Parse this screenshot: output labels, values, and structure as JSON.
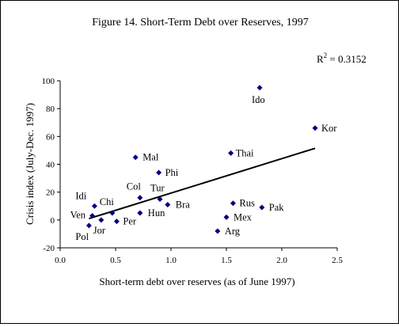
{
  "chart_data": {
    "type": "scatter",
    "title": "Figure 14. Short-Term Debt over Reserves, 1997",
    "annotation": {
      "r2_label": "R",
      "r2_sup": "2",
      "r2_value": " = 0.3152"
    },
    "xlabel": "Short-term debt over reserves (as of June 1997)",
    "ylabel": "Crisis index (July-Dec. 1997)",
    "xlim": [
      0,
      2.5
    ],
    "ylim": [
      -20,
      100
    ],
    "xticks": [
      "0.0",
      "0.5",
      "1.0",
      "1.5",
      "2.0",
      "2.5"
    ],
    "yticks": [
      "-20",
      "0",
      "20",
      "40",
      "60",
      "80",
      "100"
    ],
    "grid": false,
    "marker_color": "#000080",
    "points": [
      {
        "label": "Ido",
        "x": 1.8,
        "y": 95
      },
      {
        "label": "Kor",
        "x": 2.3,
        "y": 66
      },
      {
        "label": "Thai",
        "x": 1.54,
        "y": 48
      },
      {
        "label": "Mal",
        "x": 0.68,
        "y": 45
      },
      {
        "label": "Phi",
        "x": 0.89,
        "y": 34
      },
      {
        "label": "Col",
        "x": 0.72,
        "y": 16
      },
      {
        "label": "Tur",
        "x": 0.9,
        "y": 15
      },
      {
        "label": "Bra",
        "x": 0.97,
        "y": 11
      },
      {
        "label": "Hun",
        "x": 0.72,
        "y": 5
      },
      {
        "label": "Idi",
        "x": 0.31,
        "y": 10
      },
      {
        "label": "Chi",
        "x": 0.47,
        "y": 5
      },
      {
        "label": "Ven",
        "x": 0.29,
        "y": 3
      },
      {
        "label": "Jor",
        "x": 0.37,
        "y": 0
      },
      {
        "label": "Per",
        "x": 0.51,
        "y": -1
      },
      {
        "label": "Pol",
        "x": 0.26,
        "y": -4
      },
      {
        "label": "Rus",
        "x": 1.56,
        "y": 12
      },
      {
        "label": "Pak",
        "x": 1.82,
        "y": 9
      },
      {
        "label": "Mex",
        "x": 1.5,
        "y": 2
      },
      {
        "label": "Arg",
        "x": 1.42,
        "y": -8
      }
    ],
    "trendline": {
      "x": [
        0.26,
        2.3
      ],
      "y": [
        1.0,
        51.5
      ]
    }
  }
}
